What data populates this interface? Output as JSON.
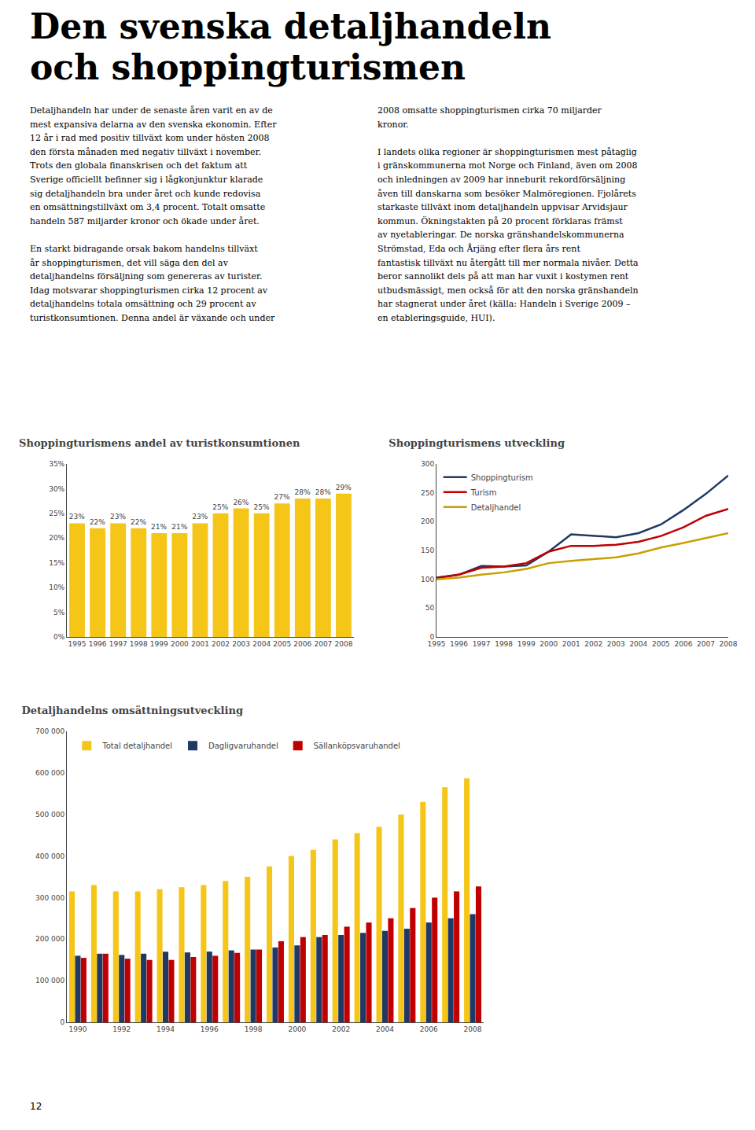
{
  "title": "Den svenska detaljhandeln\noch shoppingturismen",
  "annotations": [
    "Detaljhandeln har under de senaste åren varit en av de\nmest expansiva delarna av den svenska ekonomin. Efter\n12 år i rad med positiv tillväxt kom under hösten 2008\nden första månaden med negativ tillväxt i november.\nTrots den globala finanskrisen och det faktum att\nSverige officiellt befinner sig i lågkonjunktur klarade\nsig detaljhandeln bra under året och kunde redovisa\nen omsättningstillväxt om 3,4 procent. Totalt omsatte\nhandeln 587 miljarder kronor och ökade under året.\n\nEn starkt bidragande orsak bakom handelns tillväxt\når shoppingturismen, det vill säga den del av\ndetaljhandelns försäljning som genereras av turister.\nIdag motsvarar shoppingturismen cirka 12 procent av\ndetaljhandelns totala omsättning och 29 procent av\nturistkonsumtionen. Denna andel är växande och under",
    "2008 omsatte shoppingturismen cirka 70 miljarder\nkronor.\n\nI landets olika regioner är shoppingturismen mest påtaglig\ni gränskommunerna mot Norge och Finland, även om 2008\noch inledningen av 2009 har inneburit rekordförsäljning\nåven till danskarna som besöker Malmöregionen. Fjolårets\nstarkaste tillväxt inom detaljhandeln uppvisar Arvidsjaur\nkommun. Ökningstakten på 20 procent förklaras främst\nav nyetableringar. De norska gränshandelskommunerna\nStrömstad, Eda och Årjäng efter flera års rent\nfantastisk tillväxt nu återgått till mer normala nivåer. Detta\nberor sannolikt dels på att man har vuxit i kostymen rent\nutbudsmässigt, men också för att den norska gränshandeln\nhar stagnerat under året (källa: Handeln i Sverige 2009 –\nen etableringsguide, HUI).",
    "12"
  ],
  "chart_data": [
    {
      "type": "bar",
      "title": "Shoppingturismens andel av turistkonsumtionen",
      "categories": [
        "1995",
        "1996",
        "1997",
        "1998",
        "1999",
        "2000",
        "2001",
        "2002",
        "2003",
        "2004",
        "2005",
        "2006",
        "2007",
        "2008"
      ],
      "values": [
        23,
        22,
        23,
        22,
        21,
        21,
        23,
        25,
        26,
        25,
        27,
        28,
        28,
        29
      ],
      "value_labels": [
        "23%",
        "22%",
        "23%",
        "22%",
        "21%",
        "21%",
        "23%",
        "25%",
        "26%",
        "25%",
        "27%",
        "28%",
        "28%",
        "29%"
      ],
      "data_labels": true,
      "color": "#f5c518",
      "ylim": [
        0,
        35
      ],
      "yticks": [
        {
          "value": 0,
          "label": "0%"
        },
        {
          "value": 5,
          "label": "5%"
        },
        {
          "value": 10,
          "label": "10%"
        },
        {
          "value": 15,
          "label": "15%"
        },
        {
          "value": 20,
          "label": "20%"
        },
        {
          "value": 25,
          "label": "25%"
        },
        {
          "value": 30,
          "label": "30%"
        },
        {
          "value": 35,
          "label": "35%"
        }
      ],
      "grid": false
    },
    {
      "type": "line",
      "title": "Shoppingturismens utveckling",
      "categories": [
        "1995",
        "1996",
        "1997",
        "1998",
        "1999",
        "2000",
        "2001",
        "2002",
        "2003",
        "2004",
        "2005",
        "2006",
        "2007",
        "2008"
      ],
      "series": [
        {
          "name": "Shoppingturism",
          "color": "#1f3864",
          "values": [
            103,
            108,
            123,
            122,
            124,
            148,
            178,
            175,
            173,
            180,
            195,
            220,
            248,
            280
          ]
        },
        {
          "name": "Turism",
          "color": "#c00000",
          "values": [
            102,
            108,
            120,
            122,
            128,
            148,
            158,
            158,
            160,
            165,
            175,
            190,
            210,
            222
          ]
        },
        {
          "name": "Detaljhandel",
          "color": "#c8a000",
          "values": [
            100,
            103,
            108,
            112,
            118,
            128,
            132,
            135,
            138,
            145,
            155,
            163,
            172,
            180
          ]
        }
      ],
      "ylim": [
        0,
        300
      ],
      "yticks": [
        0,
        50,
        100,
        150,
        200,
        250,
        300
      ],
      "legend": "upper left",
      "grid": false
    },
    {
      "type": "bar",
      "title": "Detaljhandelns omsättningsutveckling",
      "categories": [
        "1990",
        null,
        "1992",
        null,
        "1994",
        null,
        "1996",
        null,
        "1998",
        null,
        "2000",
        null,
        "2002",
        null,
        "2004",
        null,
        "2006",
        null,
        "2008"
      ],
      "series": [
        {
          "name": "Total detaljhandel",
          "color": "#f5c518",
          "values": [
            315000,
            330000,
            315000,
            315000,
            320000,
            325000,
            330000,
            340000,
            350000,
            375000,
            400000,
            415000,
            440000,
            455000,
            470000,
            500000,
            530000,
            565000,
            587000
          ]
        },
        {
          "name": "Dagligvaruhandel",
          "color": "#1f3864",
          "values": [
            160000,
            165000,
            162000,
            165000,
            170000,
            168000,
            170000,
            173000,
            175000,
            180000,
            185000,
            205000,
            210000,
            215000,
            220000,
            225000,
            240000,
            250000,
            260000
          ]
        },
        {
          "name": "Sällanköpsvaruhandel",
          "color": "#c00000",
          "values": [
            155000,
            165000,
            153000,
            150000,
            150000,
            157000,
            160000,
            167000,
            175000,
            195000,
            205000,
            210000,
            230000,
            240000,
            250000,
            275000,
            300000,
            315000,
            327000
          ]
        }
      ],
      "ylim": [
        0,
        700000
      ],
      "yticks": [
        0,
        {
          "value": 100000,
          "label": "100 000"
        },
        {
          "value": 200000,
          "label": "200 000"
        },
        {
          "value": 300000,
          "label": "300 000"
        },
        {
          "value": 400000,
          "label": "400 000"
        },
        {
          "value": 500000,
          "label": "500 000"
        },
        {
          "value": 600000,
          "label": "600 000"
        },
        {
          "value": 700000,
          "label": "700 000"
        }
      ],
      "legend": "upper left",
      "grid": false
    }
  ]
}
